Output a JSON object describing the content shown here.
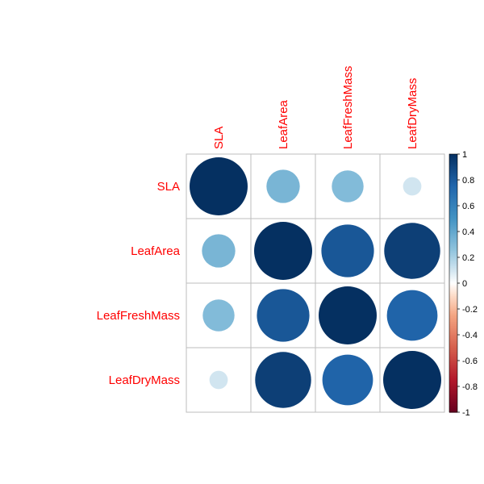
{
  "chart_data": {
    "type": "heatmap",
    "title": "",
    "variables": [
      "SLA",
      "LeafArea",
      "LeafFreshMass",
      "LeafDryMass"
    ],
    "matrix": [
      [
        1.0,
        0.33,
        0.3,
        0.1
      ],
      [
        0.33,
        1.0,
        0.82,
        0.93
      ],
      [
        0.3,
        0.82,
        1.0,
        0.76
      ],
      [
        0.1,
        0.93,
        0.76,
        1.0
      ]
    ],
    "colorbar": {
      "range": [
        -1,
        1
      ],
      "ticks": [
        "1",
        "0.8",
        "0.6",
        "0.4",
        "0.2",
        "0",
        "-0.2",
        "-0.4",
        "-0.6",
        "-0.8",
        "-1"
      ]
    },
    "label_color": "#FF0000",
    "grid": true,
    "legend": "right"
  }
}
